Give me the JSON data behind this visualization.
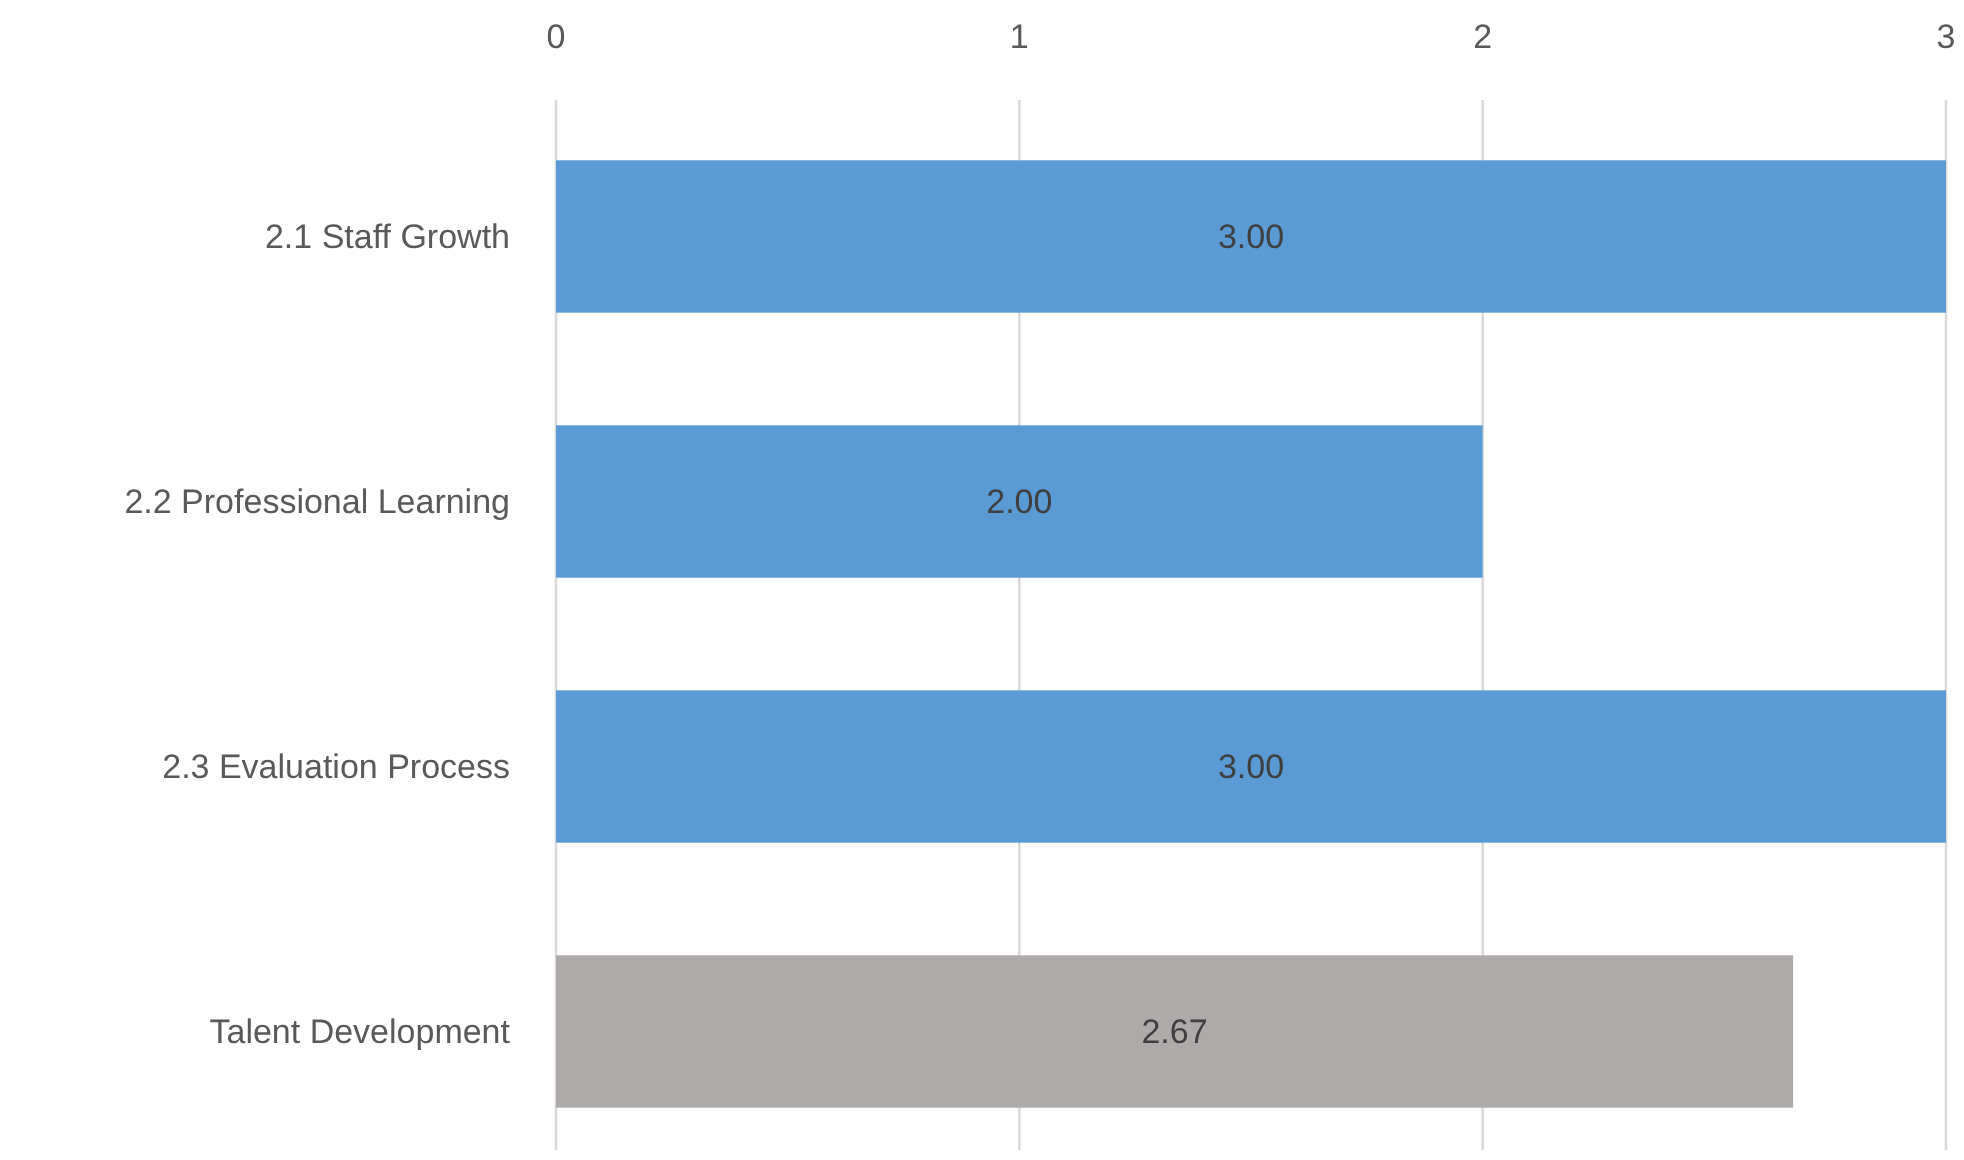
{
  "chart_data": {
    "type": "bar",
    "orientation": "horizontal",
    "categories": [
      "2.1 Staff Growth",
      "2.2 Professional Learning",
      "2.3 Evaluation Process",
      "Talent Development"
    ],
    "values": [
      3,
      2,
      3,
      2.67
    ],
    "colors": [
      "#5b9bd5",
      "#5b9bd5",
      "#5b9bd5",
      "#aeaaaa"
    ],
    "value_labels": [
      "3.00",
      "2.00",
      "3.00",
      "2.67"
    ],
    "xlim": [
      0,
      3
    ],
    "xticks": [
      0,
      1,
      2,
      3
    ],
    "grid": "x"
  }
}
